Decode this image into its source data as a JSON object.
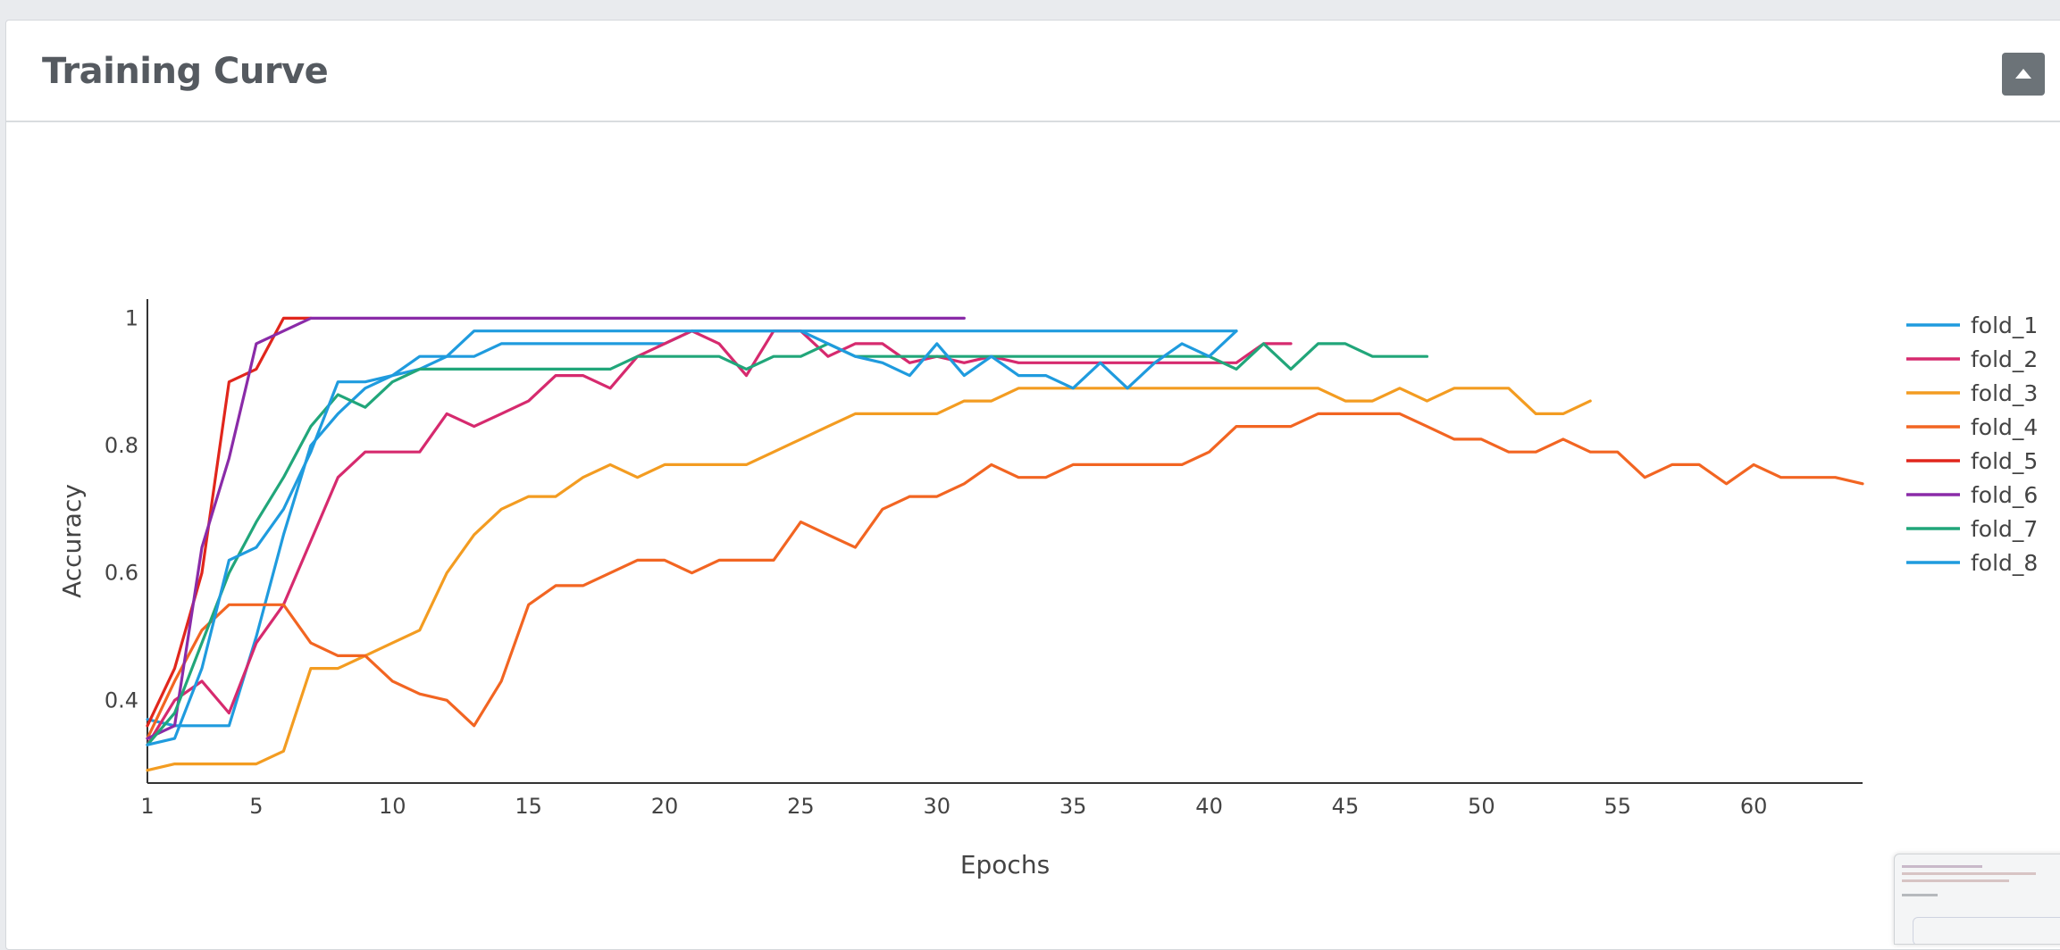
{
  "panel": {
    "title": "Training Curve"
  },
  "icons": {
    "collapse": "caret-up-icon"
  },
  "chart_data": {
    "type": "line",
    "title": "",
    "xlabel": "Epochs",
    "ylabel": "Accuracy",
    "xlim": [
      1,
      64
    ],
    "ylim": [
      0.27,
      1.03
    ],
    "xticks": [
      1,
      5,
      10,
      15,
      20,
      25,
      30,
      35,
      40,
      45,
      50,
      55,
      60
    ],
    "yticks": [
      0.4,
      0.6,
      0.8,
      1
    ],
    "ytick_labels": [
      "0.4",
      "0.6",
      "0.8",
      "1"
    ],
    "grid": false,
    "legend_position": "right",
    "series": [
      {
        "name": "fold_1",
        "color": "#1f9bde",
        "x_start": 1,
        "values": [
          0.37,
          0.36,
          0.36,
          0.36,
          0.5,
          0.66,
          0.8,
          0.85,
          0.89,
          0.91,
          0.92,
          0.94,
          0.94,
          0.96,
          0.96,
          0.96,
          0.96,
          0.96,
          0.96,
          0.96,
          0.98,
          0.98,
          0.98,
          0.98,
          0.98,
          0.98,
          0.98,
          0.98,
          0.98,
          0.98,
          0.98,
          0.98,
          0.98,
          0.98,
          0.98,
          0.98,
          0.98,
          0.98,
          0.98,
          0.98,
          0.98
        ]
      },
      {
        "name": "fold_2",
        "color": "#d62a6e",
        "x_start": 1,
        "values": [
          0.33,
          0.4,
          0.43,
          0.38,
          0.49,
          0.55,
          0.65,
          0.75,
          0.79,
          0.79,
          0.79,
          0.85,
          0.83,
          0.85,
          0.87,
          0.91,
          0.91,
          0.89,
          0.94,
          0.96,
          0.98,
          0.96,
          0.91,
          0.98,
          0.98,
          0.94,
          0.96,
          0.96,
          0.93,
          0.94,
          0.93,
          0.94,
          0.93,
          0.93,
          0.93,
          0.93,
          0.93,
          0.93,
          0.93,
          0.93,
          0.93,
          0.96,
          0.96
        ]
      },
      {
        "name": "fold_3",
        "color": "#f39c21",
        "x_start": 1,
        "values": [
          0.29,
          0.3,
          0.3,
          0.3,
          0.3,
          0.32,
          0.45,
          0.45,
          0.47,
          0.49,
          0.51,
          0.6,
          0.66,
          0.7,
          0.72,
          0.72,
          0.75,
          0.77,
          0.75,
          0.77,
          0.77,
          0.77,
          0.77,
          0.79,
          0.81,
          0.83,
          0.85,
          0.85,
          0.85,
          0.85,
          0.87,
          0.87,
          0.89,
          0.89,
          0.89,
          0.89,
          0.89,
          0.89,
          0.89,
          0.89,
          0.89,
          0.89,
          0.89,
          0.89,
          0.87,
          0.87,
          0.89,
          0.87,
          0.89,
          0.89,
          0.89,
          0.85,
          0.85,
          0.87
        ]
      },
      {
        "name": "fold_4",
        "color": "#f26522",
        "x_start": 1,
        "values": [
          0.34,
          0.43,
          0.51,
          0.55,
          0.55,
          0.55,
          0.49,
          0.47,
          0.47,
          0.43,
          0.41,
          0.4,
          0.36,
          0.43,
          0.55,
          0.58,
          0.58,
          0.6,
          0.62,
          0.62,
          0.6,
          0.62,
          0.62,
          0.62,
          0.68,
          0.66,
          0.64,
          0.7,
          0.72,
          0.72,
          0.74,
          0.77,
          0.75,
          0.75,
          0.77,
          0.77,
          0.77,
          0.77,
          0.77,
          0.79,
          0.83,
          0.83,
          0.83,
          0.85,
          0.85,
          0.85,
          0.85,
          0.83,
          0.81,
          0.81,
          0.79,
          0.79,
          0.81,
          0.79,
          0.79,
          0.75,
          0.77,
          0.77,
          0.74,
          0.77,
          0.75,
          0.75,
          0.75,
          0.74
        ]
      },
      {
        "name": "fold_5",
        "color": "#e1261c",
        "x_start": 1,
        "values": [
          0.36,
          0.45,
          0.6,
          0.9,
          0.92,
          1.0,
          1.0
        ]
      },
      {
        "name": "fold_6",
        "color": "#8a2ba8",
        "x_start": 1,
        "values": [
          0.34,
          0.36,
          0.64,
          0.78,
          0.96,
          0.98,
          1.0,
          1.0,
          1.0,
          1.0,
          1.0,
          1.0,
          1.0,
          1.0,
          1.0,
          1.0,
          1.0,
          1.0,
          1.0,
          1.0,
          1.0,
          1.0,
          1.0,
          1.0,
          1.0,
          1.0,
          1.0,
          1.0,
          1.0,
          1.0,
          1.0
        ]
      },
      {
        "name": "fold_7",
        "color": "#21a67a",
        "x_start": 1,
        "values": [
          0.33,
          0.38,
          0.49,
          0.6,
          0.68,
          0.75,
          0.83,
          0.88,
          0.86,
          0.9,
          0.92,
          0.92,
          0.92,
          0.92,
          0.92,
          0.92,
          0.92,
          0.92,
          0.94,
          0.94,
          0.94,
          0.94,
          0.92,
          0.94,
          0.94,
          0.96,
          0.94,
          0.94,
          0.94,
          0.94,
          0.94,
          0.94,
          0.94,
          0.94,
          0.94,
          0.94,
          0.94,
          0.94,
          0.94,
          0.94,
          0.92,
          0.96,
          0.92,
          0.96,
          0.96,
          0.94,
          0.94,
          0.94
        ]
      },
      {
        "name": "fold_8",
        "color": "#1f9bde",
        "x_start": 1,
        "values": [
          0.33,
          0.34,
          0.45,
          0.62,
          0.64,
          0.7,
          0.79,
          0.9,
          0.9,
          0.91,
          0.94,
          0.94,
          0.98,
          0.98,
          0.98,
          0.98,
          0.98,
          0.98,
          0.98,
          0.98,
          0.98,
          0.98,
          0.98,
          0.98,
          0.98,
          0.96,
          0.94,
          0.93,
          0.91,
          0.96,
          0.91,
          0.94,
          0.91,
          0.91,
          0.89,
          0.93,
          0.89,
          0.93,
          0.96,
          0.94,
          0.98
        ]
      }
    ]
  }
}
